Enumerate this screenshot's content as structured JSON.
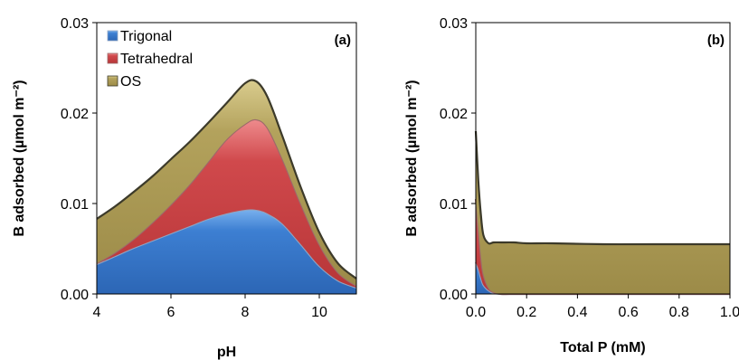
{
  "chart_data": [
    {
      "type": "area",
      "stacked": true,
      "panel_label": "(a)",
      "xlabel": "pH",
      "ylabel": "B adsorbed (µmol m⁻²)",
      "xlim": [
        4,
        11
      ],
      "ylim": [
        0,
        0.03
      ],
      "x_ticks": [
        "4",
        "6",
        "8",
        "10"
      ],
      "y_ticks": [
        "0.00",
        "0.01",
        "0.02",
        "0.03"
      ],
      "legend": {
        "placement": "top-left"
      },
      "x": [
        4.0,
        4.5,
        5.0,
        5.5,
        6.0,
        6.5,
        7.0,
        7.5,
        8.0,
        8.3,
        8.6,
        9.0,
        9.5,
        10.0,
        10.5,
        11.0
      ],
      "series": [
        {
          "name": "Trigonal",
          "color": "#3d7fd2",
          "values": [
            0.0033,
            0.0042,
            0.0051,
            0.0059,
            0.0067,
            0.0075,
            0.0083,
            0.0089,
            0.0093,
            0.0093,
            0.0089,
            0.0078,
            0.0055,
            0.0031,
            0.0015,
            0.0007
          ]
        },
        {
          "name": "Tetrahedral",
          "color": "#d0494c",
          "values": [
            0.0001,
            0.0004,
            0.001,
            0.002,
            0.0032,
            0.0046,
            0.0063,
            0.0082,
            0.0095,
            0.01,
            0.0095,
            0.0072,
            0.0045,
            0.0024,
            0.0009,
            0.0002
          ]
        },
        {
          "name": "OS",
          "color": "#b3a25c",
          "values": [
            0.0049,
            0.0051,
            0.0052,
            0.0051,
            0.005,
            0.0047,
            0.0043,
            0.004,
            0.0045,
            0.0042,
            0.0034,
            0.0025,
            0.0018,
            0.0013,
            0.001,
            0.0008
          ]
        }
      ]
    },
    {
      "type": "area",
      "stacked": true,
      "panel_label": "(b)",
      "xlabel": "Total P (mM)",
      "ylabel": "B adsorbed (µmol m⁻²)",
      "xlim": [
        0,
        1.0
      ],
      "ylim": [
        0,
        0.03
      ],
      "x_ticks": [
        "0.0",
        "0.2",
        "0.4",
        "0.6",
        "0.8",
        "1.0"
      ],
      "y_ticks": [
        "0.00",
        "0.01",
        "0.02",
        "0.03"
      ],
      "x": [
        0.0,
        0.01,
        0.02,
        0.03,
        0.05,
        0.07,
        0.1,
        0.15,
        0.2,
        0.3,
        0.5,
        0.7,
        1.0
      ],
      "series": [
        {
          "name": "Trigonal",
          "color": "#3d7fd2",
          "values": [
            0.0035,
            0.0028,
            0.0018,
            0.001,
            0.0004,
            0.0001,
            0.0,
            0.0,
            0.0,
            0.0,
            0.0,
            0.0,
            0.0
          ]
        },
        {
          "name": "Tetrahedral",
          "color": "#d0494c",
          "values": [
            0.007,
            0.0045,
            0.0025,
            0.0012,
            0.0003,
            0.0001,
            0.0,
            0.0,
            0.0,
            0.0,
            0.0,
            0.0,
            0.0
          ]
        },
        {
          "name": "OS",
          "color": "#b3a25c",
          "values": [
            0.0075,
            0.0052,
            0.0045,
            0.0043,
            0.0049,
            0.0055,
            0.0057,
            0.0057,
            0.0056,
            0.0056,
            0.0055,
            0.0055,
            0.0055
          ]
        }
      ]
    }
  ]
}
